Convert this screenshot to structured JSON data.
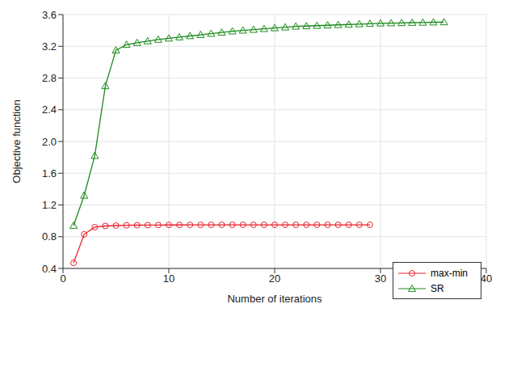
{
  "chart_data": {
    "type": "line",
    "x_label": "Number of iterations",
    "y_label": "Objective function",
    "x": [
      1,
      2,
      3,
      4,
      5,
      6,
      7,
      8,
      9,
      10,
      11,
      12,
      13,
      14,
      15,
      16,
      17,
      18,
      19,
      20,
      21,
      22,
      23,
      24,
      25,
      26,
      27,
      28,
      29,
      30,
      31,
      32,
      33,
      34,
      35,
      36
    ],
    "series": [
      {
        "name": "max-min",
        "color": "#e8202a",
        "marker": "circle",
        "values": [
          0.47,
          0.83,
          0.92,
          0.935,
          0.94,
          0.943,
          0.945,
          0.946,
          0.947,
          0.948,
          0.948,
          0.949,
          0.949,
          0.95,
          0.95,
          0.95,
          0.95,
          0.95,
          0.95,
          0.95,
          0.95,
          0.95,
          0.95,
          0.95,
          0.95,
          0.95,
          0.95,
          0.95,
          0.95,
          null,
          null,
          null,
          null,
          null,
          null,
          null
        ]
      },
      {
        "name": "SR",
        "color": "#1a8a1a",
        "marker": "triangle",
        "values": [
          0.94,
          1.32,
          1.82,
          2.7,
          3.15,
          3.22,
          3.245,
          3.265,
          3.285,
          3.3,
          3.315,
          3.33,
          3.345,
          3.36,
          3.375,
          3.39,
          3.4,
          3.41,
          3.42,
          3.43,
          3.44,
          3.45,
          3.455,
          3.46,
          3.465,
          3.47,
          3.475,
          3.48,
          3.485,
          3.49,
          3.492,
          3.495,
          3.498,
          3.5,
          3.503,
          3.505
        ]
      }
    ],
    "xlim": [
      0,
      40
    ],
    "xticks": [
      0,
      10,
      20,
      30,
      40
    ],
    "ylim": [
      0.4,
      3.6
    ],
    "yticks": [
      0.4,
      0.8,
      1.2,
      1.6,
      {
        "value": 2,
        "label": "2.0"
      },
      2.4,
      2.8,
      3.2,
      3.6
    ],
    "grid": true,
    "legend": "lower right"
  }
}
